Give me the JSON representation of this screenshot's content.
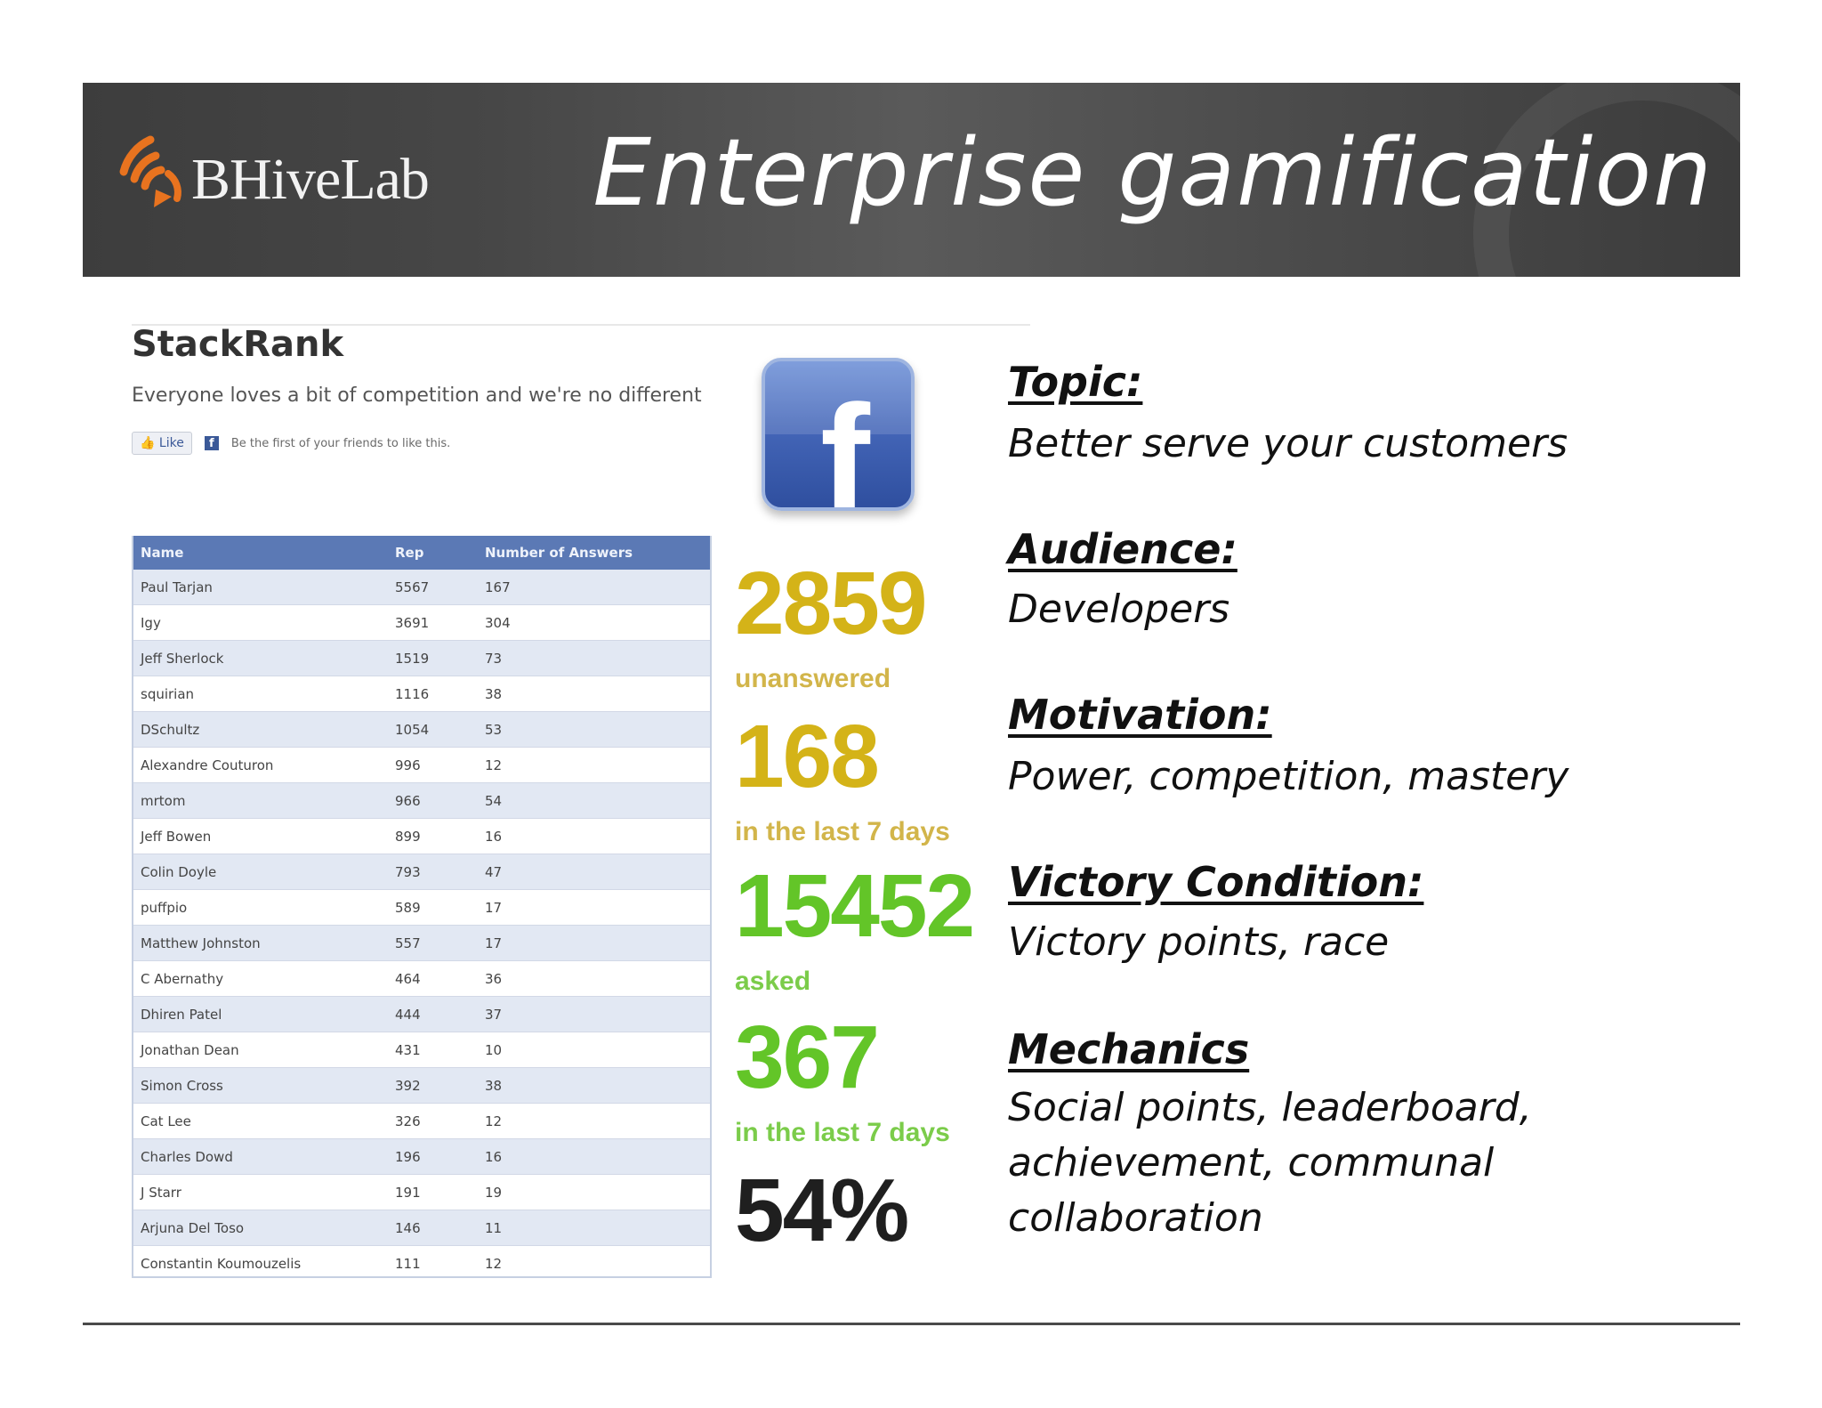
{
  "header": {
    "logo_text": "BHiveLab",
    "title": "Enterprise gamification"
  },
  "stackrank": {
    "title": "StackRank",
    "subtitle": "Everyone loves a bit of competition and we're no different",
    "like_label": "Like",
    "like_text": "Be the first of your friends to like this.",
    "columns": [
      "Name",
      "Rep",
      "Number of Answers"
    ],
    "rows": [
      [
        "Paul Tarjan",
        "5567",
        "167"
      ],
      [
        "Igy",
        "3691",
        "304"
      ],
      [
        "Jeff Sherlock",
        "1519",
        "73"
      ],
      [
        "squirian",
        "1116",
        "38"
      ],
      [
        "DSchultz",
        "1054",
        "53"
      ],
      [
        "Alexandre Couturon",
        "996",
        "12"
      ],
      [
        "mrtom",
        "966",
        "54"
      ],
      [
        "Jeff Bowen",
        "899",
        "16"
      ],
      [
        "Colin Doyle",
        "793",
        "47"
      ],
      [
        "puffpio",
        "589",
        "17"
      ],
      [
        "Matthew Johnston",
        "557",
        "17"
      ],
      [
        "C Abernathy",
        "464",
        "36"
      ],
      [
        "Dhiren Patel",
        "444",
        "37"
      ],
      [
        "Jonathan Dean",
        "431",
        "10"
      ],
      [
        "Simon Cross",
        "392",
        "38"
      ],
      [
        "Cat Lee",
        "326",
        "12"
      ],
      [
        "Charles Dowd",
        "196",
        "16"
      ],
      [
        "J Starr",
        "191",
        "19"
      ],
      [
        "Arjuna Del Toso",
        "146",
        "11"
      ],
      [
        "Constantin Koumouzelis",
        "111",
        "12"
      ]
    ]
  },
  "stats": [
    {
      "value": "2859",
      "label": "unanswered",
      "color": "#d4b318"
    },
    {
      "value": "168",
      "label": "in the last 7 days",
      "color": "#d4b318"
    },
    {
      "value": "15452",
      "label": "asked",
      "color": "#63c528"
    },
    {
      "value": "367",
      "label": "in the last 7 days",
      "color": "#63c528"
    },
    {
      "value": "54%",
      "label": "",
      "color": "#1f1f1f"
    }
  ],
  "info": {
    "topic_h": "Topic:",
    "topic_b": "Better serve your customers",
    "audience_h": "Audience:",
    "audience_b": "Developers",
    "motivation_h": "Motivation:",
    "motivation_b": "Power, competition, mastery",
    "victory_h": "Victory Condition:",
    "victory_b": "Victory points, race",
    "mechanics_h": "Mechanics",
    "mechanics_b1": "Social points, leaderboard,",
    "mechanics_b2": "achievement, communal",
    "mechanics_b3": "collaboration"
  },
  "colors": {
    "banner": "#474747",
    "table_header": "#5b79b5",
    "gold": "#d4b318",
    "green": "#63c528",
    "facebook": "#3b5998",
    "logo_orange": "#e8731f"
  },
  "icons": {
    "logo": "signal-waves-icon",
    "facebook": "facebook-icon"
  }
}
